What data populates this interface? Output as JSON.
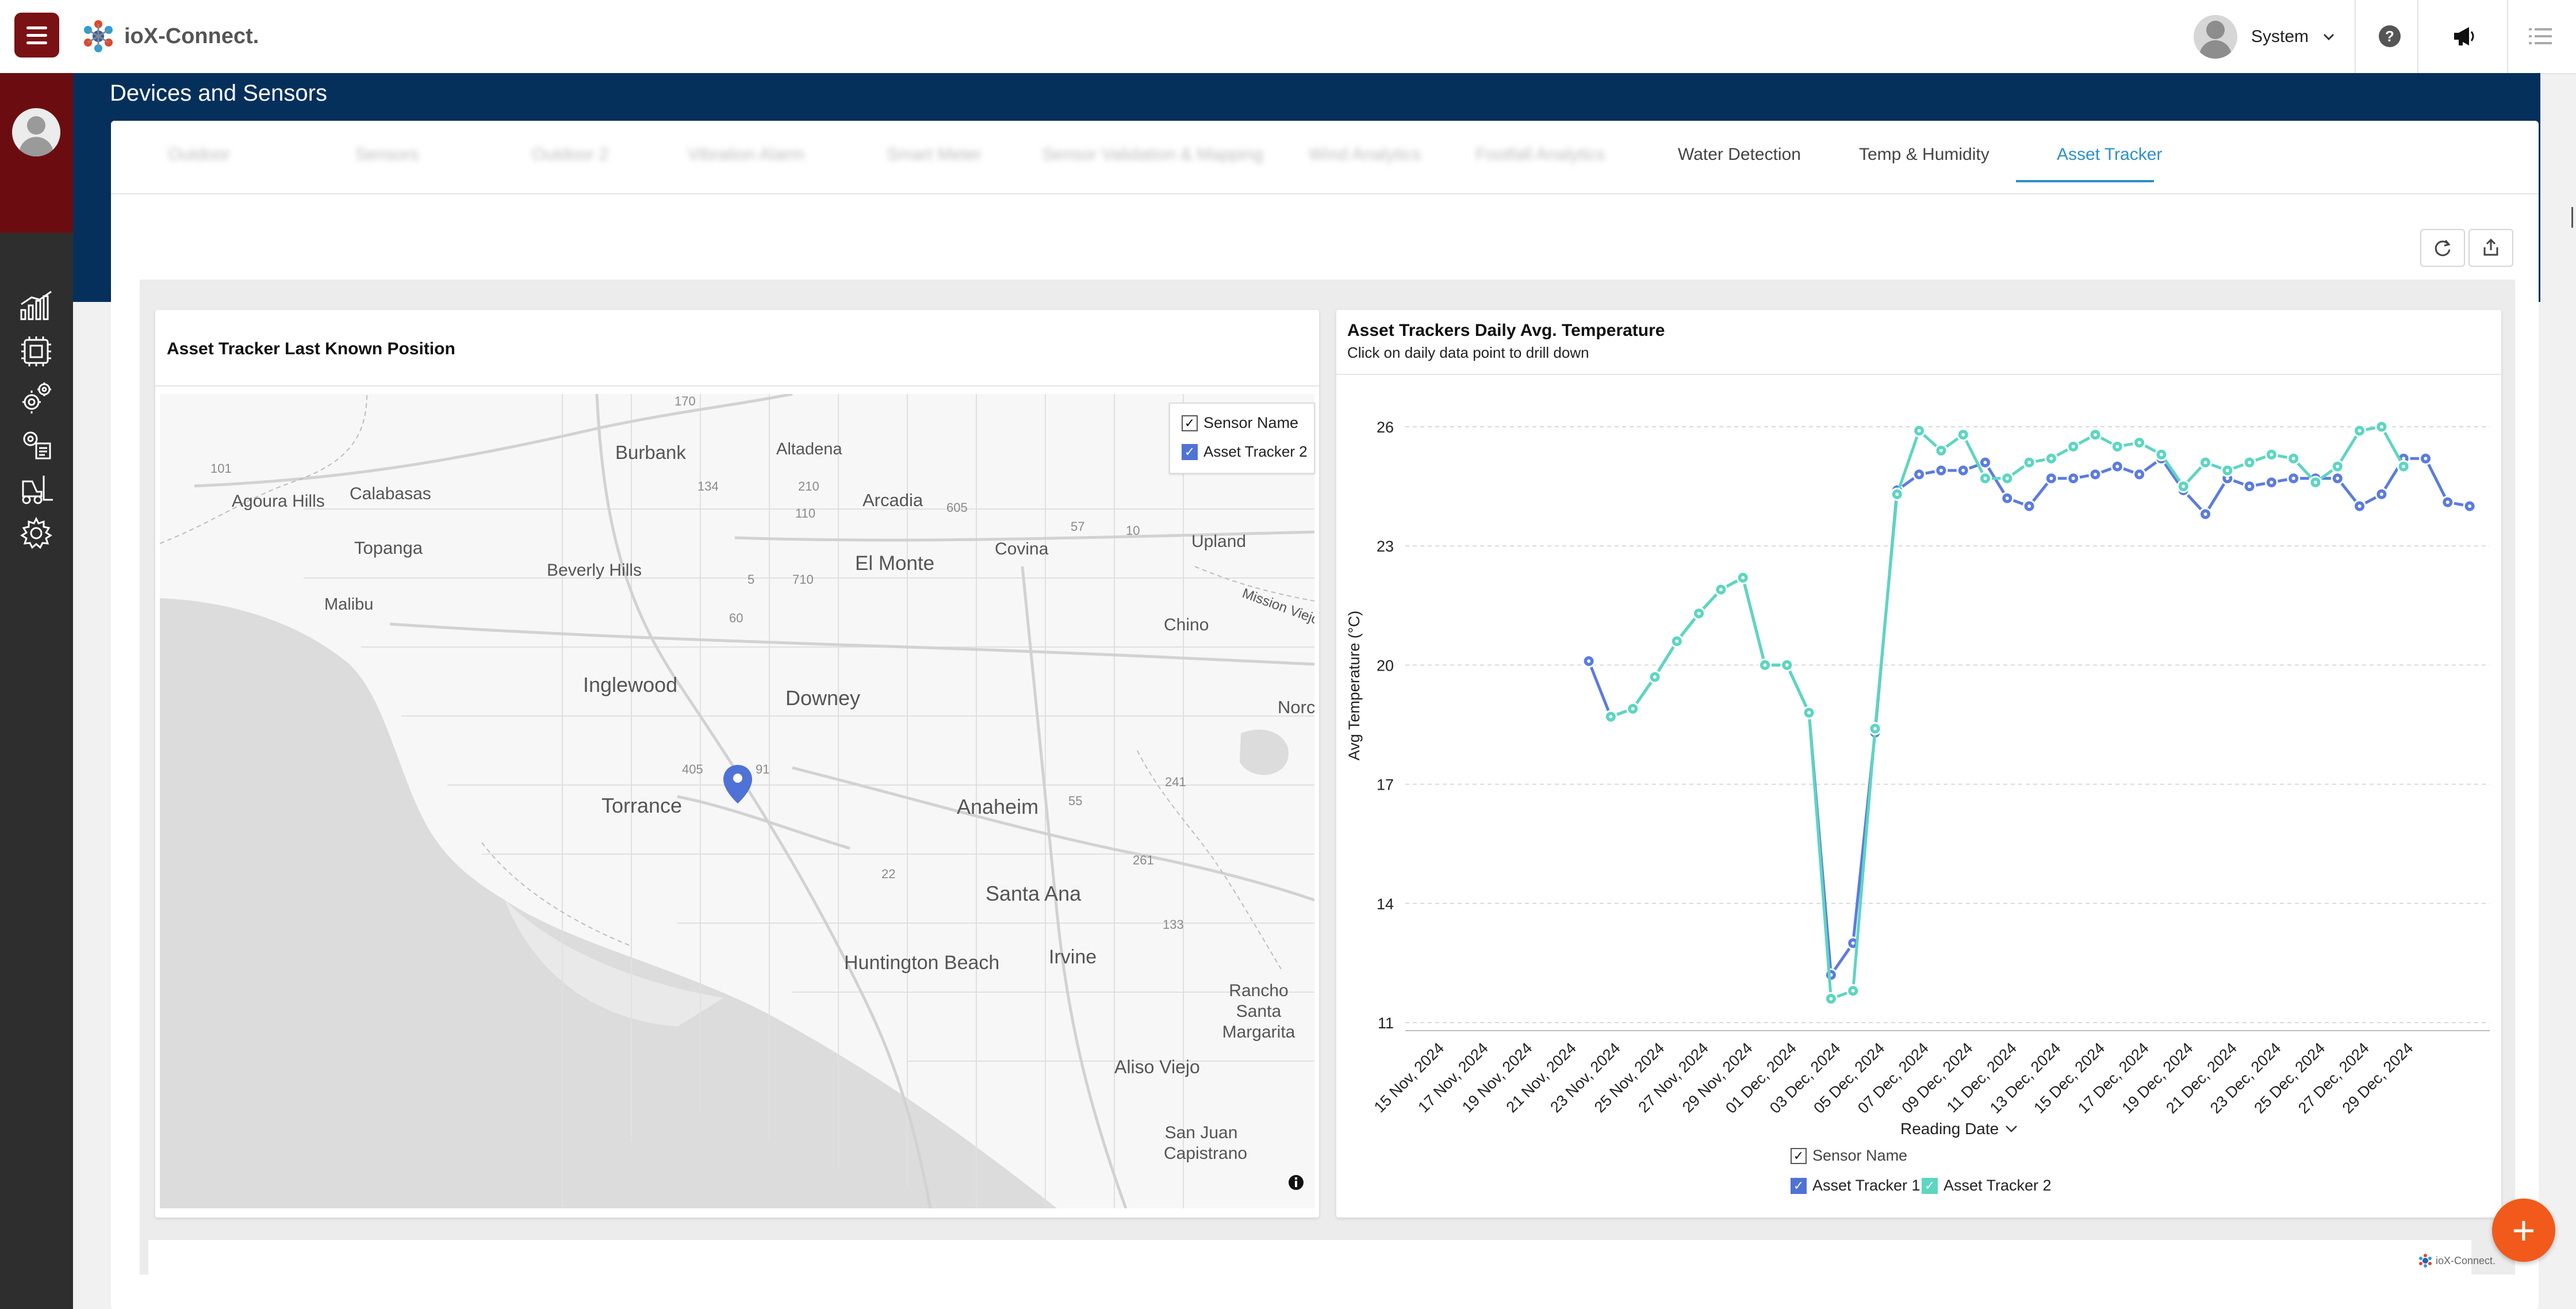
{
  "app": {
    "name": "ioX-Connect.",
    "footer_logo": "ioX-Connect."
  },
  "header": {
    "user_name": "System"
  },
  "icons": {
    "menu": "hamburger-icon",
    "help": "help-circle-icon",
    "announce": "megaphone-icon",
    "list": "list-icon",
    "refresh": "refresh-icon",
    "export": "export-icon",
    "info": "info-icon",
    "add": "plus-icon"
  },
  "page": {
    "title": "Devices and Sensors"
  },
  "tabs": [
    {
      "label": "Outdoor"
    },
    {
      "label": "Sensors"
    },
    {
      "label": "Outdoor 2"
    },
    {
      "label": "Vibration Alarm"
    },
    {
      "label": "Smart Meter"
    },
    {
      "label": "Sensor Validation & Mapping"
    },
    {
      "label": "Wind Analytics"
    },
    {
      "label": "Footfall Analytics"
    },
    {
      "label": "Water Detection"
    },
    {
      "label": "Temp & Humidity"
    },
    {
      "label": "Asset Tracker"
    }
  ],
  "active_tab": "Asset Tracker",
  "map_panel": {
    "title": "Asset Tracker Last Known Position",
    "legend": {
      "header": "Sensor Name",
      "items": [
        "Asset Tracker 2"
      ]
    },
    "cities": [
      "Burbank",
      "Altadena",
      "Agoura Hills",
      "Calabasas",
      "Arcadia",
      "Covina",
      "Upland",
      "Topanga",
      "Beverly Hills",
      "El Monte",
      "Malibu",
      "Chino",
      "Inglewood",
      "Downey",
      "Norco",
      "Torrance",
      "Anaheim",
      "Santa Ana",
      "Huntington Beach",
      "Irvine",
      "Rancho Santa Margarita",
      "Aliso Viejo",
      "San Juan Capistrano",
      "Mission Viejo"
    ],
    "highways": [
      "101",
      "210",
      "134",
      "110",
      "605",
      "57",
      "10",
      "5",
      "710",
      "60",
      "91",
      "405",
      "22",
      "55",
      "261",
      "133",
      "241",
      "170"
    ]
  },
  "chart_panel": {
    "title": "Asset Trackers Daily Avg. Temperature",
    "subtitle": "Click on daily data point to drill down",
    "x_axis_title": "Reading Date",
    "legend": {
      "header": "Sensor Name",
      "items": [
        "Asset Tracker 1",
        "Asset Tracker 2"
      ]
    }
  },
  "colors": {
    "series1": "#5b7be0",
    "series2": "#5cd6c0",
    "accent": "#2e8fc9",
    "brand": "#7a1115",
    "band": "#06305c",
    "fab": "#f15a1a"
  },
  "chart_data": {
    "type": "line",
    "title": "Asset Trackers Daily Avg. Temperature",
    "subtitle": "Click on daily data point to drill down",
    "xlabel": "Reading Date",
    "ylabel": "Avg Temperature (°C)",
    "ylim": [
      11,
      26
    ],
    "yticks": [
      11,
      14,
      17,
      20,
      23,
      26
    ],
    "grid": true,
    "legend_position": "bottom",
    "x_ticks": [
      "15 Nov, 2024",
      "17 Nov, 2024",
      "19 Nov, 2024",
      "21 Nov, 2024",
      "23 Nov, 2024",
      "25 Nov, 2024",
      "27 Nov, 2024",
      "29 Nov, 2024",
      "01 Dec, 2024",
      "03 Dec, 2024",
      "05 Dec, 2024",
      "07 Dec, 2024",
      "09 Dec, 2024",
      "11 Dec, 2024",
      "13 Dec, 2024",
      "15 Dec, 2024",
      "17 Dec, 2024",
      "19 Dec, 2024",
      "21 Dec, 2024",
      "23 Dec, 2024",
      "25 Dec, 2024",
      "27 Dec, 2024",
      "29 Dec, 2024"
    ],
    "series": [
      {
        "name": "Asset Tracker 1",
        "points": [
          [
            "2024-11-22",
            20.1
          ],
          [
            "2024-11-23",
            18.7
          ],
          [
            "2024-11-24",
            18.9
          ],
          [
            "2024-11-25",
            19.7
          ],
          [
            "2024-11-26",
            20.6
          ],
          [
            "2024-11-27",
            21.3
          ],
          [
            "2024-11-28",
            21.9
          ],
          [
            "2024-11-29",
            22.2
          ],
          [
            "2024-11-30",
            20.0
          ],
          [
            "2024-12-01",
            20.0
          ],
          [
            "2024-12-02",
            18.8
          ],
          [
            "2024-12-03",
            12.2
          ],
          [
            "2024-12-04",
            13.0
          ],
          [
            "2024-12-05",
            18.3
          ],
          [
            "2024-12-06",
            24.4
          ],
          [
            "2024-12-07",
            24.8
          ],
          [
            "2024-12-08",
            24.9
          ],
          [
            "2024-12-09",
            24.9
          ],
          [
            "2024-12-10",
            25.1
          ],
          [
            "2024-12-11",
            24.2
          ],
          [
            "2024-12-12",
            24.0
          ],
          [
            "2024-12-13",
            24.7
          ],
          [
            "2024-12-14",
            24.7
          ],
          [
            "2024-12-15",
            24.8
          ],
          [
            "2024-12-16",
            25.0
          ],
          [
            "2024-12-17",
            24.8
          ],
          [
            "2024-12-18",
            25.2
          ],
          [
            "2024-12-19",
            24.4
          ],
          [
            "2024-12-20",
            23.8
          ],
          [
            "2024-12-21",
            24.7
          ],
          [
            "2024-12-22",
            24.5
          ],
          [
            "2024-12-23",
            24.6
          ],
          [
            "2024-12-24",
            24.7
          ],
          [
            "2024-12-25",
            24.7
          ],
          [
            "2024-12-26",
            24.7
          ],
          [
            "2024-12-27",
            24.0
          ],
          [
            "2024-12-28",
            24.3
          ],
          [
            "2024-12-29",
            25.2
          ],
          [
            "2024-12-30",
            25.2
          ],
          [
            "2024-12-31",
            24.1
          ],
          [
            "2025-01-01",
            24.0
          ]
        ]
      },
      {
        "name": "Asset Tracker 2",
        "points": [
          [
            "2024-11-23",
            18.7
          ],
          [
            "2024-11-24",
            18.9
          ],
          [
            "2024-11-25",
            19.7
          ],
          [
            "2024-11-26",
            20.6
          ],
          [
            "2024-11-27",
            21.3
          ],
          [
            "2024-11-28",
            21.9
          ],
          [
            "2024-11-29",
            22.2
          ],
          [
            "2024-11-30",
            20.0
          ],
          [
            "2024-12-01",
            20.0
          ],
          [
            "2024-12-02",
            18.8
          ],
          [
            "2024-12-03",
            11.6
          ],
          [
            "2024-12-04",
            11.8
          ],
          [
            "2024-12-05",
            18.4
          ],
          [
            "2024-12-06",
            24.3
          ],
          [
            "2024-12-07",
            25.9
          ],
          [
            "2024-12-08",
            25.4
          ],
          [
            "2024-12-09",
            25.8
          ],
          [
            "2024-12-10",
            24.7
          ],
          [
            "2024-12-11",
            24.7
          ],
          [
            "2024-12-12",
            25.1
          ],
          [
            "2024-12-13",
            25.2
          ],
          [
            "2024-12-14",
            25.5
          ],
          [
            "2024-12-15",
            25.8
          ],
          [
            "2024-12-16",
            25.5
          ],
          [
            "2024-12-17",
            25.6
          ],
          [
            "2024-12-18",
            25.3
          ],
          [
            "2024-12-19",
            24.5
          ],
          [
            "2024-12-20",
            25.1
          ],
          [
            "2024-12-21",
            24.9
          ],
          [
            "2024-12-22",
            25.1
          ],
          [
            "2024-12-23",
            25.3
          ],
          [
            "2024-12-24",
            25.2
          ],
          [
            "2024-12-25",
            24.6
          ],
          [
            "2024-12-26",
            25.0
          ],
          [
            "2024-12-27",
            25.9
          ],
          [
            "2024-12-28",
            26.0
          ],
          [
            "2024-12-29",
            25.0
          ]
        ]
      }
    ]
  }
}
